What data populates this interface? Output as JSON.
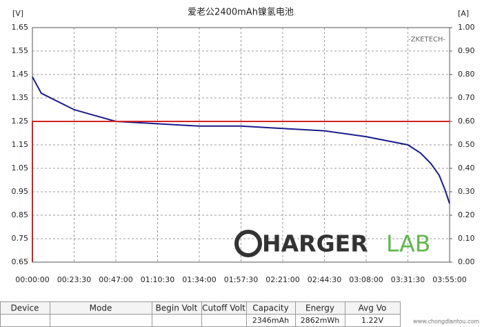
{
  "chart_data": {
    "type": "line",
    "title": "爱老公2400mAh镍氢电池",
    "y_label": "[V]",
    "y2_label": "[A]",
    "annotation": "-ZKETECH-",
    "watermark": [
      "HARGER",
      "LAB"
    ],
    "corner_watermark": "www.chongdiantou.com",
    "x": [
      0,
      300,
      1410,
      2820,
      4230,
      5640,
      7050,
      8460,
      9870,
      11280,
      12690,
      13120,
      13470,
      13750,
      13940,
      14100
    ],
    "series": [
      {
        "name": "Voltage",
        "color": "#1a1a8c",
        "x": [
          0,
          300,
          1410,
          2820,
          4230,
          5640,
          7050,
          8460,
          9870,
          11280,
          12690,
          13120,
          13470,
          13750,
          13940,
          14100
        ],
        "values": [
          1.44,
          1.37,
          1.3,
          1.25,
          1.24,
          1.23,
          1.23,
          1.22,
          1.21,
          1.185,
          1.15,
          1.115,
          1.07,
          1.02,
          0.96,
          0.9
        ]
      },
      {
        "name": "Current",
        "color": "#d42020",
        "axis": "y2",
        "x": [
          0,
          0,
          14100
        ],
        "values": [
          0,
          0.6,
          0.6
        ]
      }
    ],
    "xlim": [
      0,
      14100
    ],
    "xticks": [
      {
        "value": 0,
        "label": "00:00:00"
      },
      {
        "value": 1410,
        "label": "00:23:30"
      },
      {
        "value": 2820,
        "label": "00:47:00"
      },
      {
        "value": 4230,
        "label": "01:10:30"
      },
      {
        "value": 5640,
        "label": "01:34:00"
      },
      {
        "value": 7050,
        "label": "01:57:30"
      },
      {
        "value": 8460,
        "label": "02:21:00"
      },
      {
        "value": 9870,
        "label": "02:44:30"
      },
      {
        "value": 11280,
        "label": "03:08:00"
      },
      {
        "value": 12690,
        "label": "03:31:30"
      },
      {
        "value": 14100,
        "label": "03:55:00"
      }
    ],
    "ylim": [
      0.65,
      1.65
    ],
    "yticks": [
      0.65,
      0.75,
      0.85,
      0.95,
      1.05,
      1.15,
      1.25,
      1.35,
      1.45,
      1.55,
      1.65
    ],
    "y2lim": [
      0,
      1
    ],
    "y2ticks": [
      {
        "value": 0,
        "label": "0.00"
      },
      {
        "value": 0.1,
        "label": "0.10"
      },
      {
        "value": 0.2,
        "label": "0.20"
      },
      {
        "value": 0.3,
        "label": "0.30"
      },
      {
        "value": 0.4,
        "label": "0.40"
      },
      {
        "value": 0.5,
        "label": "0.50"
      },
      {
        "value": 0.6,
        "label": "0.60"
      },
      {
        "value": 0.7,
        "label": "0.70"
      },
      {
        "value": 0.8,
        "label": "0.80"
      },
      {
        "value": 0.9,
        "label": "0.90"
      },
      {
        "value": 1,
        "label": "1.00"
      }
    ],
    "grid": true
  },
  "table": {
    "headers": [
      "Device",
      "Mode",
      "Begin Volt",
      "Cutoff Volt",
      "Capacity",
      "Energy",
      "Avg Vo"
    ],
    "row": [
      null,
      null,
      null,
      null,
      "2346mAh",
      "2862mWh",
      "1.22V"
    ]
  }
}
